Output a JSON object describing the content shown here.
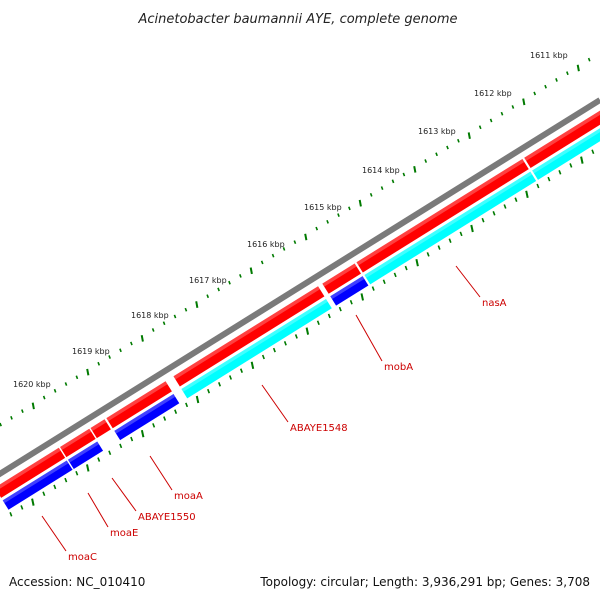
{
  "title": "Acinetobacter baumannii AYE, complete genome",
  "accession": "Accession: NC_010410",
  "summary": "Topology: circular; Length: 3,936,291 bp; Genes: 3,708",
  "ticks": [
    "1611 kbp",
    "1612 kbp",
    "1613 kbp",
    "1614 kbp",
    "1615 kbp",
    "1616 kbp",
    "1617 kbp",
    "1618 kbp",
    "1619 kbp",
    "1620 kbp"
  ],
  "genes": [
    {
      "name": "nasA",
      "track": "forward"
    },
    {
      "name": "mobA",
      "track": "forward"
    },
    {
      "name": "ABAYE1548",
      "track": "forward"
    },
    {
      "name": "moaA",
      "track": "forward"
    },
    {
      "name": "ABAYE1550",
      "track": "forward"
    },
    {
      "name": "moaE",
      "track": "forward"
    },
    {
      "name": "moaC",
      "track": "forward"
    }
  ],
  "colors": {
    "backbone": "#7a7a7a",
    "forward_gene": "#ff0000",
    "cds_cyan": "#00ffff",
    "cds_blue": "#0000ff",
    "tick": "#007a00",
    "label": "#cc0000"
  }
}
